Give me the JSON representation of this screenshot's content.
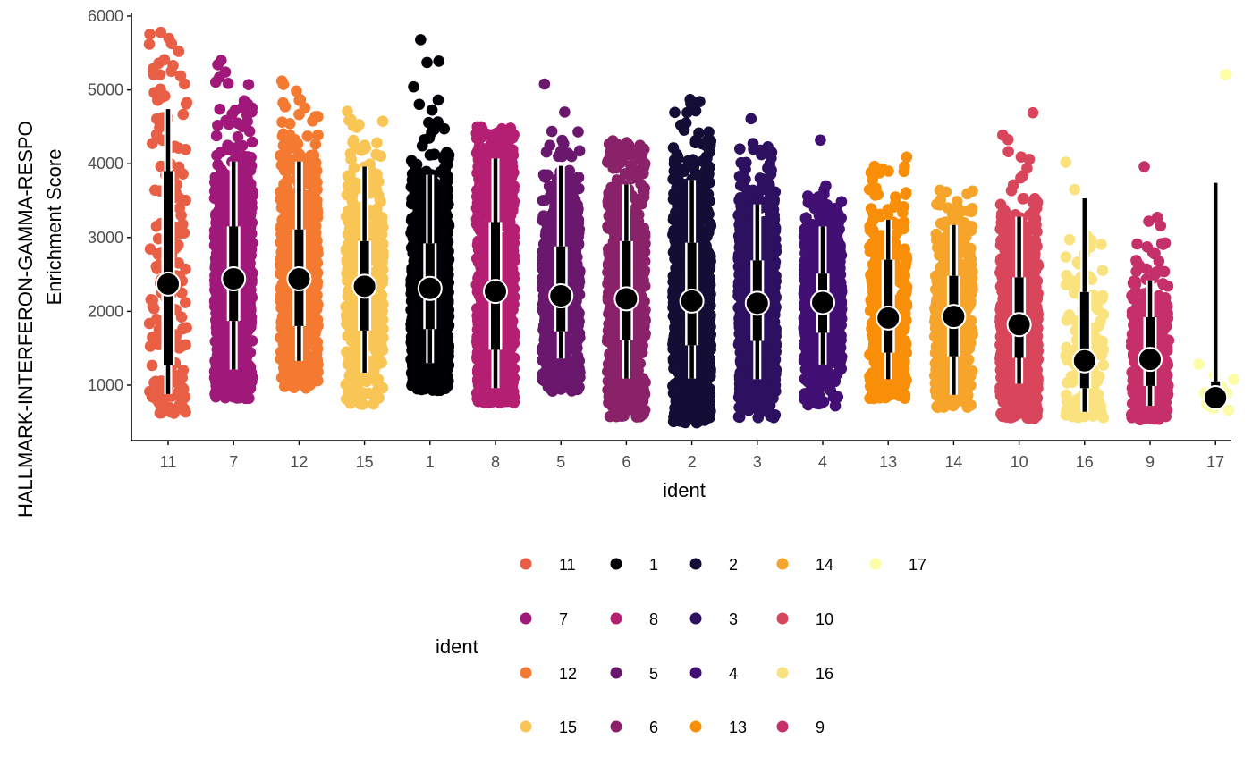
{
  "chart_data": {
    "type": "scatter",
    "subtype": "jittered strip plot with median point and quantile interval bars",
    "ylabel_line1": "HALLMARK-INTERFERON-GAMMA-RESPO",
    "ylabel_line2": "Enrichment Score",
    "xlabel": "ident",
    "ylim": [
      220,
      6000
    ],
    "yticks": [
      1000,
      2000,
      3000,
      4000,
      5000,
      6000
    ],
    "yticks_labels": [
      "1000",
      "2000",
      "3000",
      "4000",
      "5000",
      "6000"
    ],
    "grid": false,
    "categories": [
      "11",
      "7",
      "12",
      "15",
      "1",
      "8",
      "5",
      "6",
      "2",
      "3",
      "4",
      "13",
      "14",
      "10",
      "16",
      "9",
      "17"
    ],
    "series": [
      {
        "ident": "11",
        "color": "#E85F46",
        "n": 180,
        "spread": 0.58,
        "median": 2370,
        "q_inner": [
          1270,
          3900
        ],
        "q_outer": [
          880,
          4740
        ],
        "point_min": 620,
        "point_max": 5780
      },
      {
        "ident": "7",
        "color": "#A0197A",
        "n": 900,
        "spread": 0.58,
        "median": 2440,
        "q_inner": [
          1870,
          3150
        ],
        "q_outer": [
          1210,
          4030
        ],
        "point_min": 820,
        "point_max": 5400
      },
      {
        "ident": "12",
        "color": "#F47A32",
        "n": 700,
        "spread": 0.58,
        "median": 2440,
        "q_inner": [
          1800,
          3110
        ],
        "q_outer": [
          1330,
          4030
        ],
        "point_min": 960,
        "point_max": 5120
      },
      {
        "ident": "15",
        "color": "#F9C655",
        "n": 500,
        "spread": 0.58,
        "median": 2340,
        "q_inner": [
          1740,
          2950
        ],
        "q_outer": [
          1170,
          3960
        ],
        "point_min": 740,
        "point_max": 4710
      },
      {
        "ident": "1",
        "color": "#000004",
        "n": 1100,
        "spread": 0.58,
        "median": 2310,
        "q_inner": [
          1760,
          2920
        ],
        "q_outer": [
          1300,
          3850
        ],
        "point_min": 930,
        "point_max": 5680
      },
      {
        "ident": "8",
        "color": "#B51F72",
        "n": 900,
        "spread": 0.58,
        "median": 2270,
        "q_inner": [
          1480,
          3210
        ],
        "q_outer": [
          960,
          4070
        ],
        "point_min": 760,
        "point_max": 4500
      },
      {
        "ident": "5",
        "color": "#6A176E",
        "n": 700,
        "spread": 0.58,
        "median": 2210,
        "q_inner": [
          1730,
          2880
        ],
        "q_outer": [
          1360,
          3970
        ],
        "point_min": 920,
        "point_max": 5080
      },
      {
        "ident": "6",
        "color": "#8A226A",
        "n": 800,
        "spread": 0.58,
        "median": 2170,
        "q_inner": [
          1610,
          2950
        ],
        "q_outer": [
          1090,
          3720
        ],
        "point_min": 570,
        "point_max": 4310
      },
      {
        "ident": "2",
        "color": "#140E36",
        "n": 1000,
        "spread": 0.58,
        "median": 2140,
        "q_inner": [
          1540,
          2930
        ],
        "q_outer": [
          1090,
          3780
        ],
        "point_min": 490,
        "point_max": 4870
      },
      {
        "ident": "3",
        "color": "#2D1160",
        "n": 900,
        "spread": 0.58,
        "median": 2110,
        "q_inner": [
          1600,
          2690
        ],
        "q_outer": [
          1080,
          3450
        ],
        "point_min": 560,
        "point_max": 4610
      },
      {
        "ident": "4",
        "color": "#420F75",
        "n": 900,
        "spread": 0.58,
        "median": 2120,
        "q_inner": [
          1710,
          2510
        ],
        "q_outer": [
          1280,
          3150
        ],
        "point_min": 720,
        "point_max": 4320
      },
      {
        "ident": "13",
        "color": "#F98E09",
        "n": 350,
        "spread": 0.58,
        "median": 1910,
        "q_inner": [
          1440,
          2700
        ],
        "q_outer": [
          1080,
          3240
        ],
        "point_min": 820,
        "point_max": 4090
      },
      {
        "ident": "14",
        "color": "#F6A52A",
        "n": 450,
        "spread": 0.58,
        "median": 1930,
        "q_inner": [
          1390,
          2480
        ],
        "q_outer": [
          870,
          3170
        ],
        "point_min": 700,
        "point_max": 3640
      },
      {
        "ident": "10",
        "color": "#D9465B",
        "n": 800,
        "spread": 0.58,
        "median": 1820,
        "q_inner": [
          1370,
          2460
        ],
        "q_outer": [
          1020,
          3280
        ],
        "point_min": 550,
        "point_max": 4690
      },
      {
        "ident": "16",
        "color": "#FAE37F",
        "n": 150,
        "spread": 0.58,
        "median": 1330,
        "q_inner": [
          960,
          2260
        ],
        "q_outer": [
          640,
          3530
        ],
        "point_min": 560,
        "point_max": 4020
      },
      {
        "ident": "9",
        "color": "#C5306A",
        "n": 320,
        "spread": 0.58,
        "median": 1350,
        "q_inner": [
          990,
          1920
        ],
        "q_outer": [
          720,
          2420
        ],
        "point_min": 530,
        "point_max": 3960
      },
      {
        "ident": "17",
        "color": "#FCFDA4",
        "n": 10,
        "spread": 0.58,
        "median": 830,
        "q_inner": [
          740,
          1050
        ],
        "q_outer": [
          690,
          3740
        ],
        "point_min": 660,
        "point_max": 5210
      }
    ],
    "legend": {
      "title": "ident",
      "placement": "bottom",
      "columns": [
        [
          "11",
          "7",
          "12",
          "15"
        ],
        [
          "1",
          "8",
          "5",
          "6"
        ],
        [
          "2",
          "3",
          "4",
          "13"
        ],
        [
          "14",
          "10",
          "16",
          "9"
        ],
        [
          "17"
        ]
      ]
    }
  }
}
